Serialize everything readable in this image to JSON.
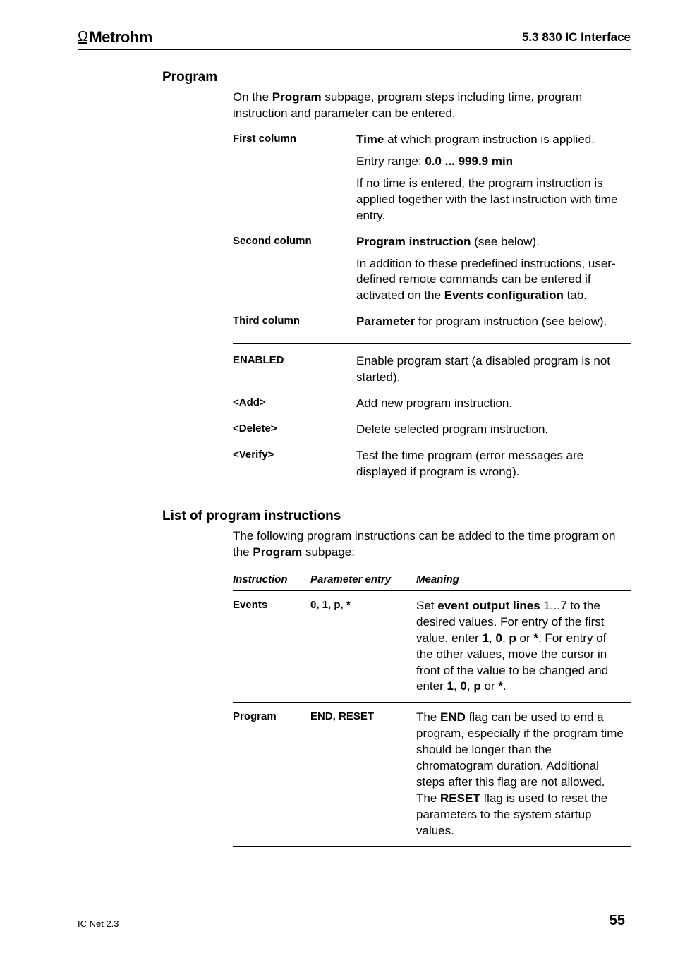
{
  "header": {
    "logo_text": "Metrohm",
    "section_ref": "5.3  830 IC Interface"
  },
  "program_section": {
    "title": "Program",
    "intro_pre": "On the ",
    "intro_bold": "Program",
    "intro_post": " subpage, program steps including time, program instruction and parameter can be entered.",
    "rows": [
      {
        "term": "First column",
        "para1_bold": "Time",
        "para1_rest": " at which program instruction is applied.",
        "para2_pre": "Entry range: ",
        "para2_bold": "0.0 ... 999.9 min",
        "para3": "If no time is entered, the program instruction is applied together with the last instruction with time entry."
      },
      {
        "term": "Second column",
        "para1_bold": "Program instruction",
        "para1_rest": " (see below).",
        "para2_pre": "In addition to these predefined instructions, user-defined remote commands can be entered if activated on the ",
        "para2_bold": "Events configuration",
        "para2_post": " tab."
      },
      {
        "term": "Third column",
        "para1_bold": "Parameter",
        "para1_rest": " for program instruction (see below)."
      }
    ],
    "rows2": [
      {
        "term": "ENABLED",
        "def": "Enable program start (a disabled program is not started)."
      },
      {
        "term": "<Add>",
        "def": "Add new program instruction."
      },
      {
        "term": "<Delete>",
        "def": "Delete selected program instruction."
      },
      {
        "term": "<Verify>",
        "def": "Test the time program (error messages are displayed if program is wrong)."
      }
    ]
  },
  "list_section": {
    "title": "List of program instructions",
    "intro_pre": "The following program instructions can be added to the time program on the ",
    "intro_bold": "Program",
    "intro_post": " subpage:",
    "headers": {
      "c1": "Instruction",
      "c2": "Parameter entry",
      "c3": "Meaning"
    },
    "rows": [
      {
        "instruction": "Events",
        "param": "0, 1, p, *",
        "meaning_parts": [
          {
            "t": "Set "
          },
          {
            "t": "event output lines",
            "b": true
          },
          {
            "t": " 1...7 to the desired values. For entry of the first value, enter "
          },
          {
            "t": "1",
            "b": true
          },
          {
            "t": ", "
          },
          {
            "t": "0",
            "b": true
          },
          {
            "t": ", "
          },
          {
            "t": "p",
            "b": true
          },
          {
            "t": " or "
          },
          {
            "t": "*",
            "b": true
          },
          {
            "t": ". For entry of the other values, move the cursor in front of the value to be changed and enter "
          },
          {
            "t": "1",
            "b": true
          },
          {
            "t": ", "
          },
          {
            "t": "0",
            "b": true
          },
          {
            "t": ", "
          },
          {
            "t": "p",
            "b": true
          },
          {
            "t": " or "
          },
          {
            "t": "*",
            "b": true
          },
          {
            "t": "."
          }
        ]
      },
      {
        "instruction": "Program",
        "param": "END, RESET",
        "meaning_parts": [
          {
            "t": "The "
          },
          {
            "t": "END",
            "b": true
          },
          {
            "t": " flag can be used to end a program, especially if the program time should be longer than the chromatogram duration. Additional steps after this flag are not allowed. The "
          },
          {
            "t": "RESET",
            "b": true
          },
          {
            "t": " flag is used to reset the parameters to the system startup values."
          }
        ]
      }
    ]
  },
  "footer": {
    "left": "IC Net 2.3",
    "page": "55"
  }
}
